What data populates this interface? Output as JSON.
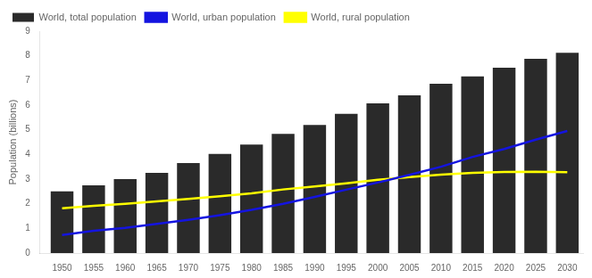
{
  "chart_data": {
    "type": "bar",
    "x": [
      1950,
      1955,
      1960,
      1965,
      1970,
      1975,
      1980,
      1985,
      1990,
      1995,
      2000,
      2005,
      2010,
      2015,
      2020,
      2025,
      2030
    ],
    "series": [
      {
        "name": "World, total population",
        "type": "bar",
        "color": "#2a2a2a",
        "values": [
          2.5,
          2.75,
          3.0,
          3.25,
          3.65,
          4.02,
          4.4,
          4.83,
          5.2,
          5.65,
          6.07,
          6.4,
          6.87,
          7.17,
          7.52,
          7.88,
          8.12
        ]
      },
      {
        "name": "World, urban population",
        "type": "line",
        "color": "#1414e0",
        "values": [
          0.73,
          0.9,
          1.02,
          1.18,
          1.35,
          1.54,
          1.75,
          2.0,
          2.28,
          2.57,
          2.86,
          3.17,
          3.5,
          3.9,
          4.22,
          4.6,
          4.95
        ]
      },
      {
        "name": "World, rural population",
        "type": "line",
        "color": "#ffff00",
        "values": [
          1.82,
          1.92,
          2.0,
          2.1,
          2.2,
          2.3,
          2.42,
          2.58,
          2.7,
          2.83,
          2.97,
          3.08,
          3.18,
          3.25,
          3.29,
          3.3,
          3.28
        ]
      }
    ],
    "ylabel": "Population (billions)",
    "xlim": [
      1946.5,
      2032.5
    ],
    "xticks": [
      1950,
      1955,
      1960,
      1965,
      1970,
      1975,
      1980,
      1985,
      1990,
      1995,
      2000,
      2005,
      2010,
      2015,
      2020,
      2025,
      2030
    ],
    "ylim": [
      0,
      9
    ],
    "yticks": [
      0,
      1,
      2,
      3,
      4,
      5,
      6,
      7,
      8,
      9
    ],
    "grid": false,
    "legend": "upper left"
  }
}
